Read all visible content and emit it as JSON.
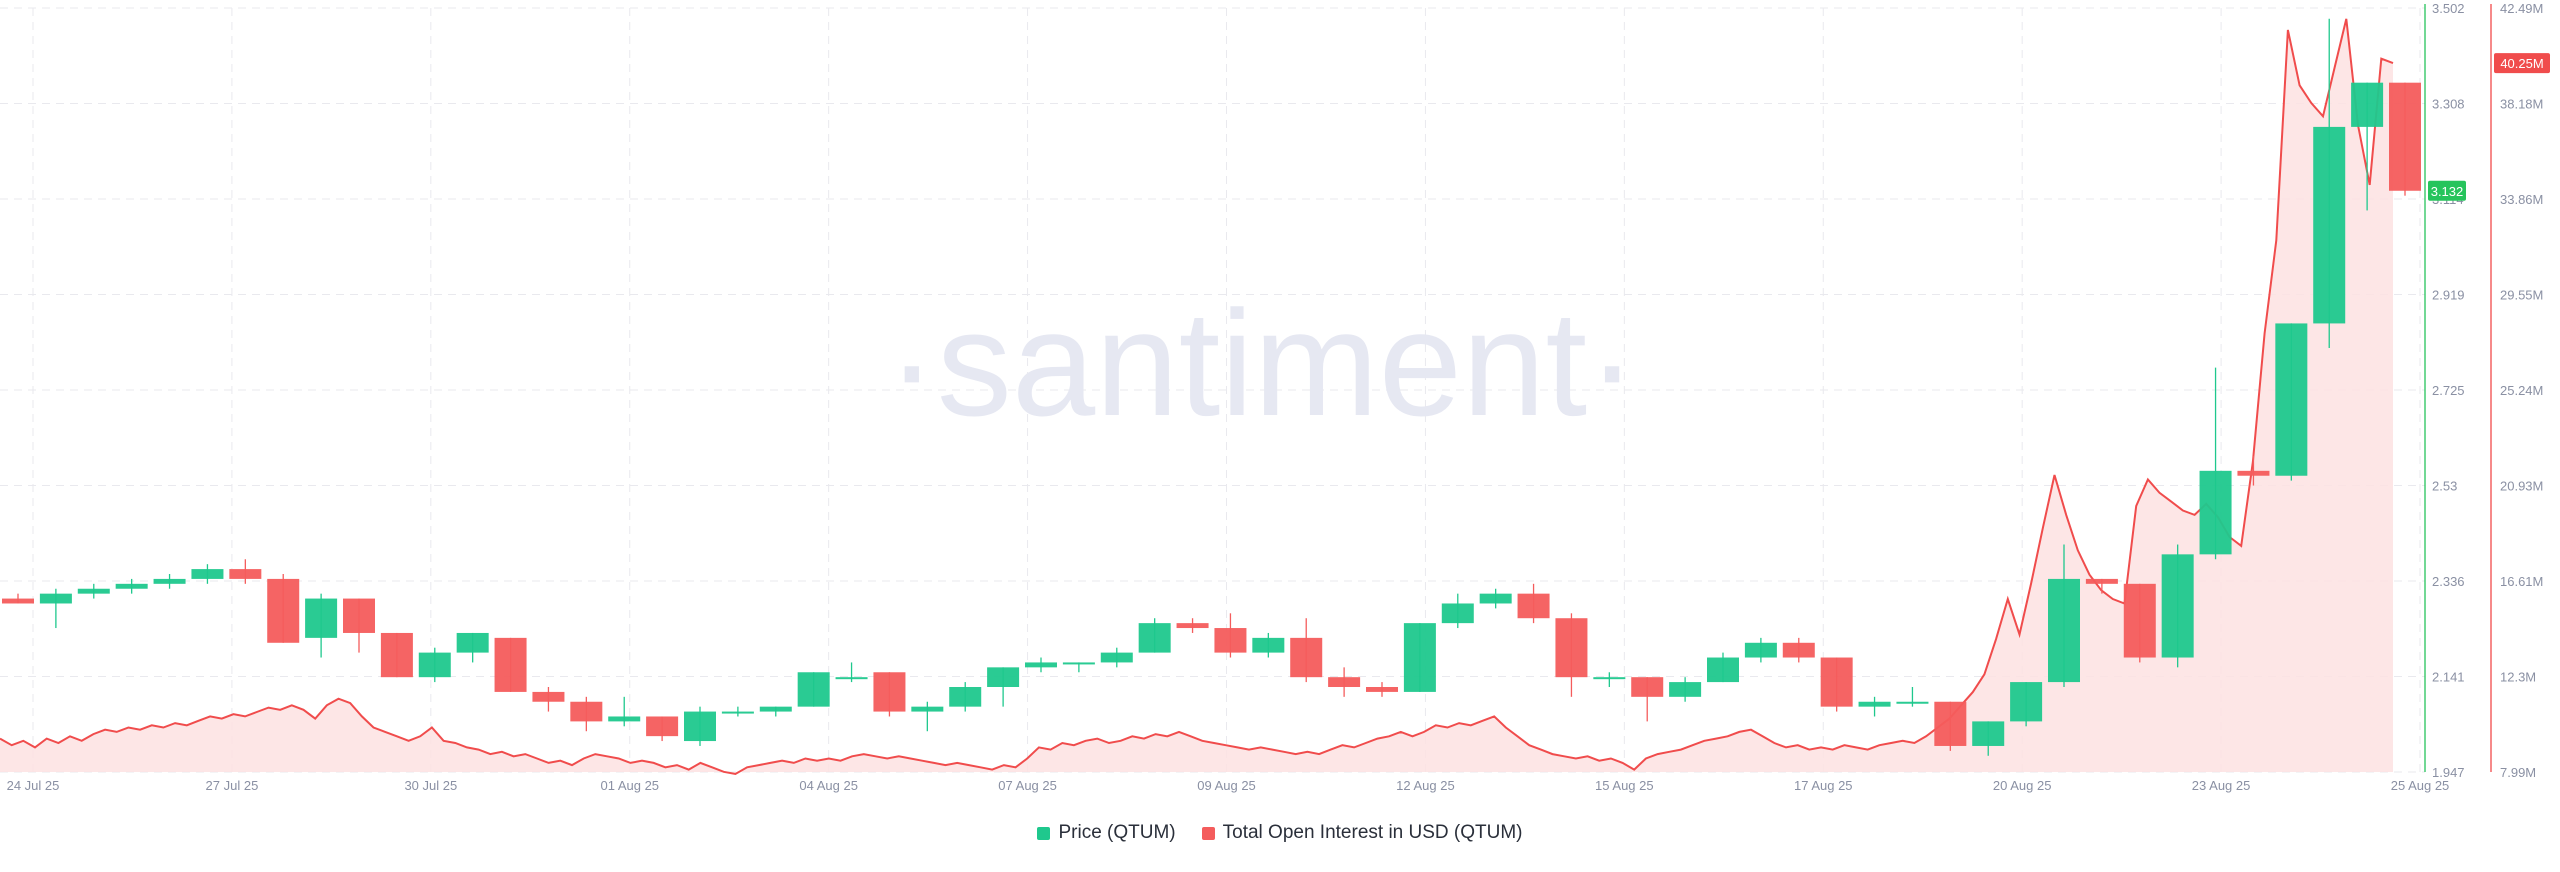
{
  "watermark": "·santiment·",
  "colors": {
    "up": "#1fc88d",
    "down": "#f45c5c",
    "oi_line": "#f04c4c",
    "oi_fill": "#fde2e2",
    "price_axis": "#26c45c",
    "grid": "#e9e9ee",
    "axis_text": "#8a90a3",
    "watermark": "#e6e8f2"
  },
  "chart_data": {
    "type": "candlestick+area",
    "title": "",
    "x_tick_labels": [
      "24 Jul 25",
      "27 Jul 25",
      "30 Jul 25",
      "01 Aug 25",
      "04 Aug 25",
      "07 Aug 25",
      "09 Aug 25",
      "12 Aug 25",
      "15 Aug 25",
      "17 Aug 25",
      "20 Aug 25",
      "23 Aug 25",
      "25 Aug 25"
    ],
    "price_axis": {
      "label": "Price (QTUM)",
      "ylim": [
        1.947,
        3.502
      ],
      "ticks": [
        "3.502",
        "3.308",
        "3.114",
        "2.919",
        "2.725",
        "2.53",
        "2.336",
        "2.141",
        "1.947"
      ],
      "current_value": "3.132"
    },
    "oi_axis": {
      "label": "Total Open Interest in USD (QTUM)",
      "ylim": [
        7.99,
        42.49
      ],
      "unit": "M",
      "ticks": [
        "42.49M",
        "38.18M",
        "33.86M",
        "29.55M",
        "25.24M",
        "20.93M",
        "16.61M",
        "12.3M",
        "7.99M"
      ],
      "current_value": "40.25M"
    },
    "series": [
      {
        "name": "Price (QTUM)",
        "kind": "candlestick",
        "ohlc": [
          [
            2.3,
            2.31,
            2.29,
            2.29
          ],
          [
            2.29,
            2.32,
            2.24,
            2.31
          ],
          [
            2.31,
            2.33,
            2.3,
            2.32
          ],
          [
            2.32,
            2.34,
            2.31,
            2.33
          ],
          [
            2.33,
            2.35,
            2.32,
            2.34
          ],
          [
            2.34,
            2.37,
            2.33,
            2.36
          ],
          [
            2.36,
            2.38,
            2.33,
            2.34
          ],
          [
            2.34,
            2.35,
            2.21,
            2.21
          ],
          [
            2.22,
            2.31,
            2.18,
            2.3
          ],
          [
            2.3,
            2.3,
            2.19,
            2.23
          ],
          [
            2.23,
            2.23,
            2.14,
            2.14
          ],
          [
            2.14,
            2.2,
            2.13,
            2.19
          ],
          [
            2.19,
            2.23,
            2.17,
            2.23
          ],
          [
            2.22,
            2.22,
            2.11,
            2.11
          ],
          [
            2.11,
            2.12,
            2.07,
            2.09
          ],
          [
            2.09,
            2.1,
            2.03,
            2.05
          ],
          [
            2.05,
            2.1,
            2.04,
            2.06
          ],
          [
            2.06,
            2.06,
            2.01,
            2.02
          ],
          [
            2.01,
            2.08,
            2.0,
            2.07
          ],
          [
            2.07,
            2.08,
            2.06,
            2.07
          ],
          [
            2.07,
            2.08,
            2.06,
            2.08
          ],
          [
            2.08,
            2.15,
            2.08,
            2.15
          ],
          [
            2.14,
            2.17,
            2.13,
            2.14
          ],
          [
            2.15,
            2.15,
            2.06,
            2.07
          ],
          [
            2.07,
            2.09,
            2.03,
            2.08
          ],
          [
            2.08,
            2.13,
            2.07,
            2.12
          ],
          [
            2.12,
            2.16,
            2.08,
            2.16
          ],
          [
            2.16,
            2.18,
            2.15,
            2.17
          ],
          [
            2.17,
            2.17,
            2.15,
            2.17
          ],
          [
            2.17,
            2.2,
            2.16,
            2.19
          ],
          [
            2.19,
            2.26,
            2.19,
            2.25
          ],
          [
            2.25,
            2.26,
            2.23,
            2.24
          ],
          [
            2.24,
            2.27,
            2.18,
            2.19
          ],
          [
            2.19,
            2.23,
            2.18,
            2.22
          ],
          [
            2.22,
            2.26,
            2.13,
            2.14
          ],
          [
            2.14,
            2.16,
            2.1,
            2.12
          ],
          [
            2.12,
            2.13,
            2.1,
            2.11
          ],
          [
            2.11,
            2.25,
            2.11,
            2.25
          ],
          [
            2.25,
            2.31,
            2.24,
            2.29
          ],
          [
            2.29,
            2.32,
            2.28,
            2.31
          ],
          [
            2.31,
            2.33,
            2.25,
            2.26
          ],
          [
            2.26,
            2.27,
            2.1,
            2.14
          ],
          [
            2.14,
            2.15,
            2.12,
            2.14
          ],
          [
            2.14,
            2.14,
            2.05,
            2.1
          ],
          [
            2.1,
            2.14,
            2.09,
            2.13
          ],
          [
            2.13,
            2.19,
            2.13,
            2.18
          ],
          [
            2.18,
            2.22,
            2.17,
            2.21
          ],
          [
            2.21,
            2.22,
            2.17,
            2.18
          ],
          [
            2.18,
            2.18,
            2.07,
            2.08
          ],
          [
            2.08,
            2.1,
            2.06,
            2.09
          ],
          [
            2.09,
            2.12,
            2.08,
            2.09
          ],
          [
            2.09,
            2.09,
            1.99,
            2.0
          ],
          [
            2.0,
            2.05,
            1.98,
            2.05
          ],
          [
            2.05,
            2.13,
            2.04,
            2.13
          ],
          [
            2.13,
            2.41,
            2.12,
            2.34
          ],
          [
            2.34,
            2.34,
            2.31,
            2.33
          ],
          [
            2.33,
            2.33,
            2.17,
            2.18
          ],
          [
            2.18,
            2.41,
            2.16,
            2.39
          ],
          [
            2.39,
            2.77,
            2.38,
            2.56
          ],
          [
            2.56,
            2.59,
            2.53,
            2.55
          ],
          [
            2.55,
            2.86,
            2.54,
            2.86
          ],
          [
            2.86,
            3.48,
            2.81,
            3.26
          ],
          [
            3.26,
            3.35,
            3.09,
            3.35
          ],
          [
            3.35,
            3.35,
            3.12,
            3.13
          ]
        ]
      },
      {
        "name": "Total Open Interest in USD (QTUM)",
        "kind": "area",
        "values_musd": [
          9.5,
          9.2,
          9.4,
          9.1,
          9.5,
          9.3,
          9.6,
          9.4,
          9.7,
          9.9,
          9.8,
          10.0,
          9.9,
          10.1,
          10.0,
          10.2,
          10.1,
          10.3,
          10.5,
          10.4,
          10.6,
          10.5,
          10.7,
          10.9,
          10.8,
          11.0,
          10.8,
          10.4,
          11.0,
          11.3,
          11.1,
          10.5,
          10.0,
          9.8,
          9.6,
          9.4,
          9.6,
          10.0,
          9.4,
          9.3,
          9.1,
          9.0,
          8.8,
          8.9,
          8.7,
          8.8,
          8.6,
          8.4,
          8.5,
          8.3,
          8.6,
          8.8,
          8.7,
          8.6,
          8.4,
          8.5,
          8.4,
          8.2,
          8.3,
          8.1,
          8.4,
          8.2,
          8.0,
          7.9,
          8.2,
          8.3,
          8.4,
          8.5,
          8.4,
          8.6,
          8.5,
          8.6,
          8.5,
          8.7,
          8.8,
          8.7,
          8.6,
          8.7,
          8.6,
          8.5,
          8.4,
          8.3,
          8.4,
          8.3,
          8.2,
          8.1,
          8.3,
          8.2,
          8.6,
          9.1,
          9.0,
          9.3,
          9.2,
          9.4,
          9.5,
          9.3,
          9.4,
          9.6,
          9.5,
          9.7,
          9.6,
          9.8,
          9.6,
          9.4,
          9.3,
          9.2,
          9.1,
          9.0,
          9.1,
          9.0,
          8.9,
          8.8,
          8.9,
          8.8,
          9.0,
          9.2,
          9.1,
          9.3,
          9.5,
          9.6,
          9.8,
          9.6,
          9.8,
          10.1,
          10.0,
          10.2,
          10.1,
          10.3,
          10.5,
          10.0,
          9.6,
          9.2,
          9.0,
          8.8,
          8.7,
          8.6,
          8.7,
          8.5,
          8.6,
          8.4,
          8.1,
          8.6,
          8.8,
          8.9,
          9.0,
          9.2,
          9.4,
          9.5,
          9.6,
          9.8,
          9.9,
          9.6,
          9.3,
          9.1,
          9.2,
          9.0,
          9.1,
          9.0,
          9.2,
          9.1,
          9.0,
          9.2,
          9.3,
          9.4,
          9.3,
          9.6,
          10.0,
          10.4,
          11.0,
          11.6,
          12.4,
          14.0,
          15.8,
          14.2,
          16.5,
          19.0,
          21.4,
          19.6,
          18.0,
          16.9,
          16.2,
          15.8,
          15.6,
          20.0,
          21.2,
          20.6,
          20.2,
          19.8,
          19.6,
          20.1,
          19.5,
          18.6,
          18.2,
          22.0,
          27.8,
          32.0,
          41.5,
          39.0,
          38.2,
          37.6,
          39.8,
          42.0,
          37.2,
          34.5,
          40.2,
          40.0
        ]
      }
    ],
    "grid": true,
    "legend_position": "bottom-center"
  },
  "legend": {
    "items": [
      {
        "label": "Price (QTUM)",
        "color": "#1fc88d"
      },
      {
        "label": "Total Open Interest in USD (QTUM)",
        "color": "#f45c5c"
      }
    ]
  }
}
